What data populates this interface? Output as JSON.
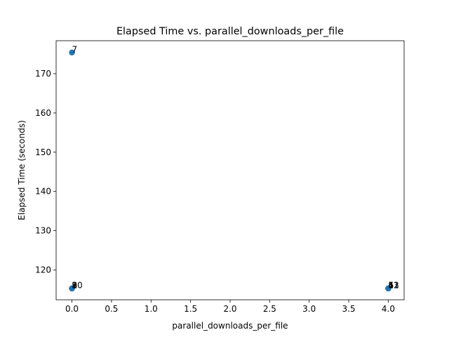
{
  "chart_data": {
    "type": "scatter",
    "title": "Elapsed Time vs. parallel_downloads_per_file",
    "xlabel": "parallel_downloads_per_file",
    "ylabel": "Elapsed Time (seconds)",
    "xlim": [
      -0.2,
      4.2
    ],
    "ylim": [
      112.4,
      178.4
    ],
    "xticks": [
      0.0,
      0.5,
      1.0,
      1.5,
      2.0,
      2.5,
      3.0,
      3.5,
      4.0
    ],
    "xtick_labels": [
      "0.0",
      "0.5",
      "1.0",
      "1.5",
      "2.0",
      "2.5",
      "3.0",
      "3.5",
      "4.0"
    ],
    "yticks": [
      120,
      130,
      140,
      150,
      160,
      170
    ],
    "ytick_labels": [
      "120",
      "130",
      "140",
      "150",
      "160",
      "170"
    ],
    "grid": false,
    "marker_color": "#1f77b4",
    "points": [
      {
        "x": 0,
        "y": 175.4,
        "label": "7"
      },
      {
        "x": 0,
        "y": 115.3,
        "label": "1"
      },
      {
        "x": 0,
        "y": 115.3,
        "label": "2"
      },
      {
        "x": 0,
        "y": 115.3,
        "label": "3"
      },
      {
        "x": 0,
        "y": 115.3,
        "label": "8"
      },
      {
        "x": 0,
        "y": 115.3,
        "label": "9"
      },
      {
        "x": 0,
        "y": 115.3,
        "label": "10"
      },
      {
        "x": 4,
        "y": 115.3,
        "label": "4"
      },
      {
        "x": 4,
        "y": 115.3,
        "label": "5"
      },
      {
        "x": 4,
        "y": 115.3,
        "label": "6"
      },
      {
        "x": 4,
        "y": 115.3,
        "label": "11"
      },
      {
        "x": 4,
        "y": 115.3,
        "label": "12"
      },
      {
        "x": 4,
        "y": 115.3,
        "label": "13"
      }
    ]
  }
}
